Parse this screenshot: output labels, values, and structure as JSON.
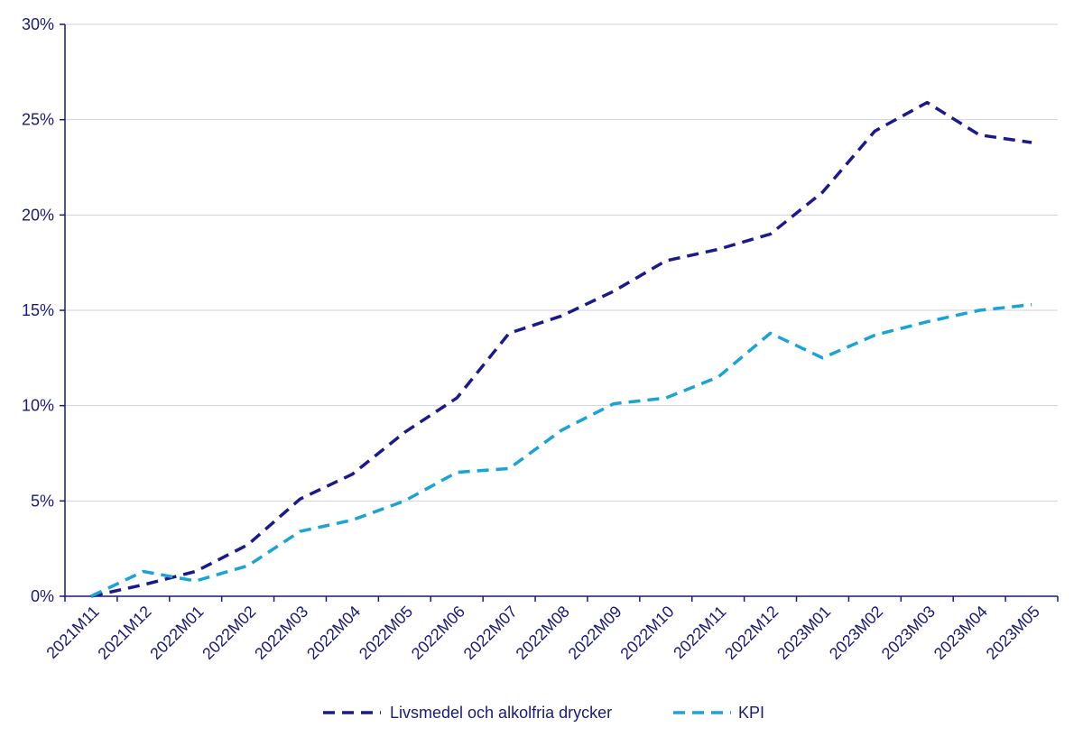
{
  "chart_data": {
    "type": "line",
    "title": "",
    "xlabel": "",
    "ylabel": "",
    "categories": [
      "2021M11",
      "2021M12",
      "2022M01",
      "2022M02",
      "2022M03",
      "2022M04",
      "2022M05",
      "2022M06",
      "2022M07",
      "2022M08",
      "2022M09",
      "2022M10",
      "2022M11",
      "2022M12",
      "2023M01",
      "2023M02",
      "2023M03",
      "2023M04",
      "2023M05"
    ],
    "ylim": [
      0,
      30
    ],
    "yticks": [
      0,
      5,
      10,
      15,
      20,
      25,
      30
    ],
    "ytick_labels": [
      "0%",
      "5%",
      "10%",
      "15%",
      "20%",
      "25%",
      "30%"
    ],
    "grid": true,
    "legend_position": "bottom",
    "series": [
      {
        "name": "Livsmedel och alkolfria drycker",
        "color": "#1a1a8c",
        "values": [
          0.0,
          0.6,
          1.3,
          2.7,
          5.1,
          6.4,
          8.6,
          10.4,
          13.8,
          14.7,
          16.0,
          17.6,
          18.2,
          19.0,
          21.2,
          24.4,
          25.9,
          24.2,
          23.8
        ]
      },
      {
        "name": "KPI",
        "color": "#1aa3d6",
        "values": [
          0.0,
          1.3,
          0.8,
          1.6,
          3.4,
          4.0,
          5.0,
          6.5,
          6.7,
          8.7,
          10.1,
          10.4,
          11.5,
          13.8,
          12.5,
          13.7,
          14.4,
          15.0,
          15.3
        ]
      }
    ]
  }
}
